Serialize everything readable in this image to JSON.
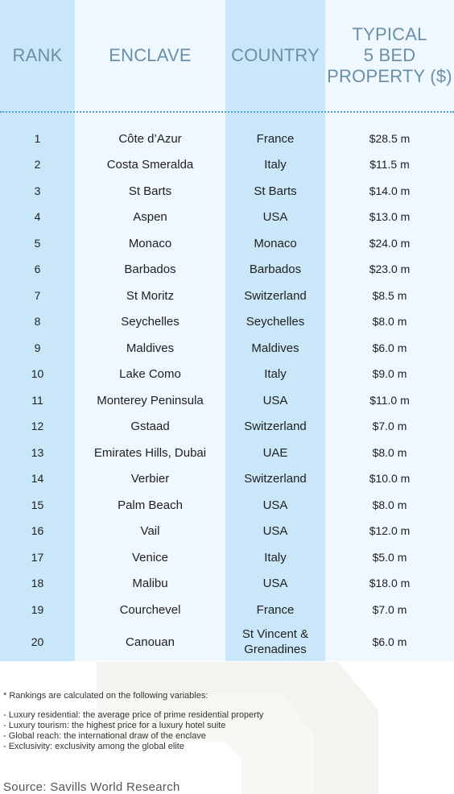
{
  "header": {
    "rank": "RANK",
    "enclave": "ENCLAVE",
    "country": "COUNTRY",
    "price_line1": "TYPICAL",
    "price_line2": "5 BED",
    "price_line3": "PROPERTY ($)"
  },
  "rows": [
    {
      "rank": "1",
      "enclave": "Côte d’Azur",
      "country": "France",
      "price": "$28.5 m"
    },
    {
      "rank": "2",
      "enclave": "Costa Smeralda",
      "country": "Italy",
      "price": "$11.5 m"
    },
    {
      "rank": "3",
      "enclave": "St Barts",
      "country": "St Barts",
      "price": "$14.0 m"
    },
    {
      "rank": "4",
      "enclave": "Aspen",
      "country": "USA",
      "price": "$13.0 m"
    },
    {
      "rank": "5",
      "enclave": "Monaco",
      "country": "Monaco",
      "price": "$24.0 m"
    },
    {
      "rank": "6",
      "enclave": "Barbados",
      "country": "Barbados",
      "price": "$23.0 m"
    },
    {
      "rank": "7",
      "enclave": "St Moritz",
      "country": "Switzerland",
      "price": "$8.5 m"
    },
    {
      "rank": "8",
      "enclave": "Seychelles",
      "country": "Seychelles",
      "price": "$8.0 m"
    },
    {
      "rank": "9",
      "enclave": "Maldives",
      "country": "Maldives",
      "price": "$6.0 m"
    },
    {
      "rank": "10",
      "enclave": "Lake Como",
      "country": "Italy",
      "price": "$9.0 m"
    },
    {
      "rank": "11",
      "enclave": "Monterey Peninsula",
      "country": "USA",
      "price": "$11.0 m"
    },
    {
      "rank": "12",
      "enclave": "Gstaad",
      "country": "Switzerland",
      "price": "$7.0 m"
    },
    {
      "rank": "13",
      "enclave": "Emirates Hills, Dubai",
      "country": "UAE",
      "price": "$8.0 m"
    },
    {
      "rank": "14",
      "enclave": "Verbier",
      "country": "Switzerland",
      "price": "$10.0 m"
    },
    {
      "rank": "15",
      "enclave": "Palm Beach",
      "country": "USA",
      "price": "$8.0 m"
    },
    {
      "rank": "16",
      "enclave": "Vail",
      "country": "USA",
      "price": "$12.0 m"
    },
    {
      "rank": "17",
      "enclave": "Venice",
      "country": "Italy",
      "price": "$5.0 m"
    },
    {
      "rank": "18",
      "enclave": "Malibu",
      "country": "USA",
      "price": "$18.0 m"
    },
    {
      "rank": "19",
      "enclave": "Courchevel",
      "country": "France",
      "price": "$7.0 m"
    },
    {
      "rank": "20",
      "enclave": "Canouan",
      "country": "St Vincent & Grenadines",
      "country_line1": "St Vincent &",
      "country_line2": "Grenadines",
      "price": "$6.0 m"
    }
  ],
  "notes": {
    "lead": "* Rankings are calculated on the following variables:",
    "items": [
      "- Luxury residential: the average price of prime residential property",
      "- Luxury tourism: the highest price for a luxury hotel suite",
      "- Global reach: the international draw of the enclave",
      "- Exclusivity: exclusivity among the global elite"
    ]
  },
  "source": "Source: Savills World Research",
  "colors": {
    "column_dark": "#c9e7f8",
    "column_light": "#eef8fe",
    "header_text": "#6b8fa8",
    "divider": "#4aa7d6"
  }
}
